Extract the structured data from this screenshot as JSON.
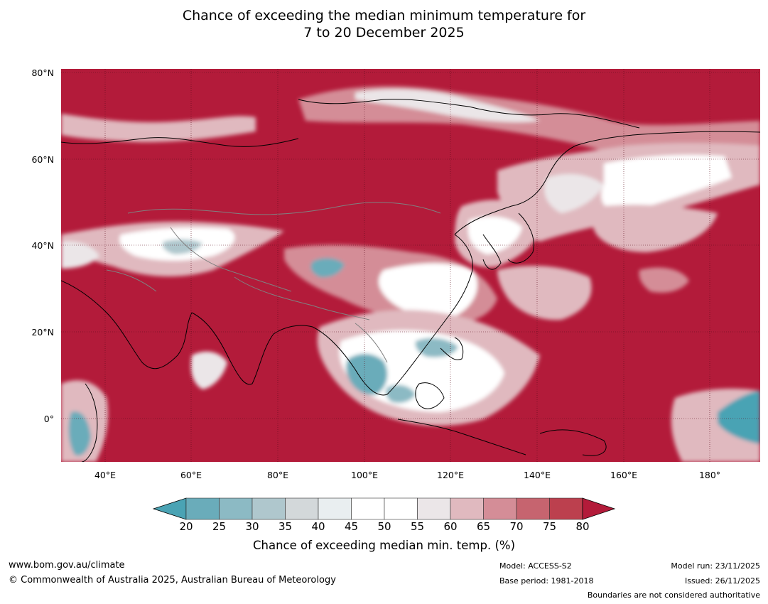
{
  "title": {
    "line1": "Chance of exceeding the median minimum temperature for",
    "line2": "7 to 20 December 2025"
  },
  "map": {
    "projection": "plate-carree",
    "lon_range": [
      30,
      190
    ],
    "lat_range": [
      -10,
      80
    ],
    "lat_ticks": [
      "80°N",
      "60°N",
      "40°N",
      "20°N",
      "0°"
    ],
    "lon_ticks": [
      "40°E",
      "60°E",
      "80°E",
      "100°E",
      "120°E",
      "140°E",
      "160°E",
      "180°"
    ],
    "dominant_category": "above 80%",
    "colors": {
      "above_80": "#b31b3a",
      "ocean_background": "#b31b3a",
      "coastline": "#000000",
      "border": "#808080"
    }
  },
  "colorbar": {
    "ticks": [
      "20",
      "25",
      "30",
      "35",
      "40",
      "45",
      "50",
      "55",
      "60",
      "65",
      "70",
      "75",
      "80"
    ],
    "colors": [
      "#4aa3b4",
      "#6aacba",
      "#8cbac4",
      "#afc7cd",
      "#d3d8da",
      "#e9eef0",
      "#ffffff",
      "#ffffff",
      "#ebe6e8",
      "#e0b9bf",
      "#d48d97",
      "#c6646f",
      "#bc404e",
      "#b31b3a"
    ],
    "label": "Chance of exceeding median min. temp. (%)"
  },
  "footer": {
    "url": "www.bom.gov.au/climate",
    "copyright": "© Commonwealth of Australia 2025, Australian Bureau of Meteorology",
    "model": "Model: ACCESS-S2",
    "base_period": "Base period: 1981-2018",
    "model_run": "Model run: 23/11/2025",
    "issued": "Issued: 26/11/2025",
    "boundaries_note": "Boundaries are not considered authoritative"
  }
}
